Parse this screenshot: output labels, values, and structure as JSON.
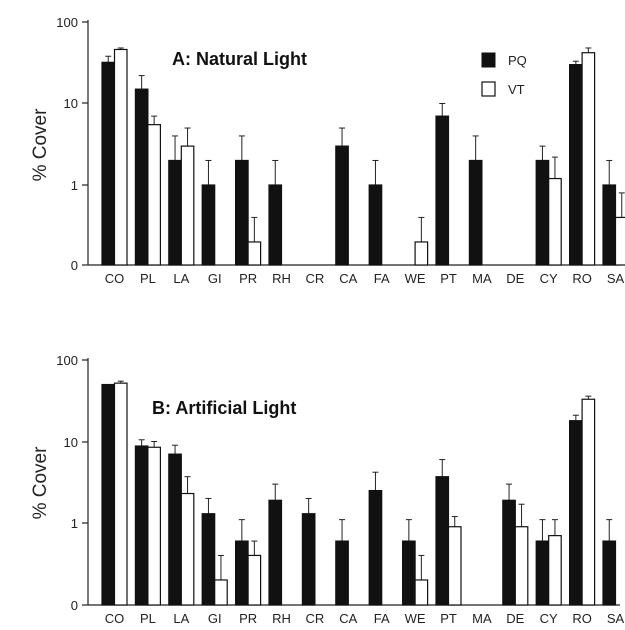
{
  "chart_data": [
    {
      "type": "bar",
      "title": "A: Natural Light",
      "ylabel": "% Cover",
      "xlabel": "",
      "yscale": "log-with-zero",
      "ylim": [
        0,
        100
      ],
      "yticks": [
        "0",
        "1",
        "10",
        "100"
      ],
      "legend_position": "top-right",
      "categories": [
        "CO",
        "PL",
        "LA",
        "GI",
        "PR",
        "RH",
        "CR",
        "CA",
        "FA",
        "WE",
        "PT",
        "MA",
        "DE",
        "CY",
        "RO",
        "SA"
      ],
      "series": [
        {
          "name": "PQ",
          "color": "#111111",
          "values": [
            32,
            15,
            2,
            1,
            2,
            1,
            0,
            3,
            1,
            0,
            7,
            2,
            0,
            2,
            30,
            1
          ],
          "errors": [
            38,
            22,
            4,
            2,
            4,
            2,
            0,
            5,
            2,
            0,
            10,
            4,
            0,
            3,
            33,
            2
          ]
        },
        {
          "name": "VT",
          "color": "#ffffff",
          "values": [
            46,
            5.5,
            3,
            0,
            0.2,
            0,
            0,
            0,
            0,
            0.2,
            0,
            0,
            0,
            1.2,
            42,
            0.4
          ],
          "errors": [
            48,
            7,
            5,
            0,
            0.4,
            0,
            0,
            0,
            0,
            0.4,
            0,
            0,
            0,
            2.2,
            48,
            0.8
          ]
        }
      ]
    },
    {
      "type": "bar",
      "title": "B: Artificial Light",
      "ylabel": "% Cover",
      "xlabel": "",
      "yscale": "log-with-zero",
      "ylim": [
        0,
        100
      ],
      "yticks": [
        "0",
        "1",
        "10",
        "100"
      ],
      "legend_position": "none",
      "categories": [
        "CO",
        "PL",
        "LA",
        "GI",
        "PR",
        "RH",
        "CR",
        "CA",
        "FA",
        "WE",
        "PT",
        "MA",
        "DE",
        "CY",
        "RO",
        "SA"
      ],
      "series": [
        {
          "name": "PQ",
          "color": "#111111",
          "values": [
            50,
            8.8,
            7,
            1.3,
            0.6,
            1.9,
            1.3,
            0.6,
            2.5,
            0.6,
            3.7,
            0,
            1.9,
            0.6,
            18,
            0.6
          ],
          "errors": [
            50,
            10.5,
            9,
            2,
            1.1,
            3,
            2,
            1.1,
            4.2,
            1.1,
            6,
            0,
            3,
            1.1,
            21,
            1.1
          ]
        },
        {
          "name": "VT",
          "color": "#ffffff",
          "values": [
            52,
            8.5,
            2.3,
            0.2,
            0.4,
            0,
            0,
            0,
            0,
            0.2,
            0.9,
            0,
            0.9,
            0.7,
            33,
            0
          ],
          "errors": [
            55,
            10,
            3.7,
            0.4,
            0.6,
            0,
            0,
            0,
            0,
            0.4,
            1.2,
            0,
            1.7,
            1.1,
            36,
            0
          ]
        }
      ]
    }
  ]
}
